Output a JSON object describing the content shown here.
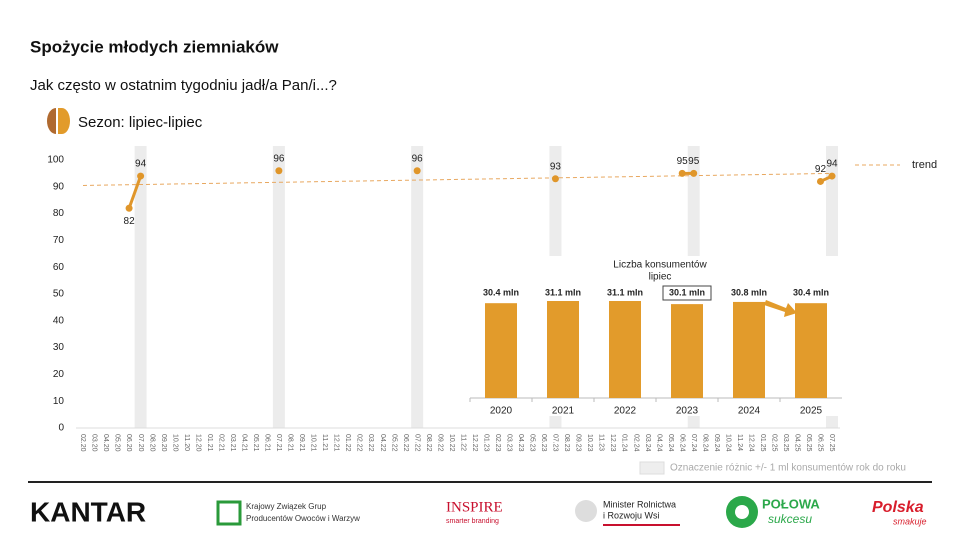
{
  "title": "Spożycie młodych ziemniaków",
  "subtitle": "Jak często w ostatnim tygodniu jadł/a Pan/i...?",
  "chart_data": [
    {
      "type": "line",
      "categories": [
        "02.20",
        "03.20",
        "04.20",
        "05.20",
        "06.20",
        "07.20",
        "08.20",
        "09.20",
        "10.20",
        "11.20",
        "12.20",
        "01.21",
        "02.21",
        "03.21",
        "04.21",
        "05.21",
        "06.21",
        "07.21",
        "08.21",
        "09.21",
        "10.21",
        "11.21",
        "12.21",
        "01.22",
        "02.22",
        "03.22",
        "04.22",
        "05.22",
        "06.22",
        "07.22",
        "08.22",
        "09.22",
        "10.22",
        "11.22",
        "12.22",
        "01.23",
        "02.23",
        "03.23",
        "04.23",
        "05.23",
        "06.23",
        "07.23",
        "08.23",
        "09.23",
        "10.23",
        "11.23",
        "12.23",
        "01.24",
        "02.24",
        "03.24",
        "04.24",
        "05.24",
        "06.24",
        "07.24",
        "08.24",
        "09.24",
        "10.24",
        "11.24",
        "12.24",
        "01.25",
        "02.25",
        "03.25",
        "04.25",
        "05.25",
        "06.25",
        "07.25"
      ],
      "series": [
        {
          "name": "Sezon: lipiec-lipiec",
          "color": "#e0962a",
          "values": [
            null,
            null,
            null,
            null,
            82,
            94,
            null,
            null,
            null,
            null,
            null,
            null,
            null,
            null,
            null,
            null,
            null,
            96,
            null,
            null,
            null,
            null,
            null,
            null,
            null,
            null,
            null,
            null,
            null,
            96,
            null,
            null,
            null,
            null,
            null,
            null,
            null,
            null,
            null,
            null,
            null,
            93,
            null,
            null,
            null,
            null,
            null,
            null,
            null,
            null,
            null,
            null,
            95,
            95,
            null,
            null,
            null,
            null,
            null,
            null,
            null,
            null,
            null,
            null,
            92,
            94
          ]
        }
      ],
      "trend": {
        "name": "trend",
        "color": "#e8a860",
        "x": [
          "02.20",
          "07.25"
        ],
        "values": [
          90.5,
          95
        ]
      },
      "highlight": [
        "07.20",
        "07.21",
        "07.22",
        "07.23",
        "07.24",
        "07.25"
      ],
      "highlight_label": "Oznaczenie różnic +/- 1 ml konsumentów rok do roku",
      "ylim": [
        0,
        100
      ],
      "yticks": [
        0,
        10,
        20,
        30,
        40,
        50,
        60,
        70,
        80,
        90,
        100
      ]
    },
    {
      "type": "bar",
      "title": "Liczba konsumentów",
      "subtitle": "lipiec",
      "categories": [
        "2020",
        "2021",
        "2022",
        "2023",
        "2024",
        "2025"
      ],
      "values": [
        30.4,
        31.1,
        31.1,
        30.1,
        30.8,
        30.4
      ],
      "value_labels": [
        "30.4 mln",
        "31.1 mln",
        "31.1 mln",
        "30.1 mln",
        "30.8 mln",
        "30.4 mln"
      ],
      "boxed": [
        false,
        false,
        false,
        true,
        false,
        false
      ],
      "color": "#e29b2b"
    }
  ],
  "logos": {
    "kantar": "KANTAR",
    "kzg1": "Krajowy Związek Grup",
    "kzg2": "Producentów Owoców i Warzyw",
    "inspire": "INSPIRE",
    "inspire2": "smarter branding",
    "min1": "Minister Rolnictwa",
    "min2": "i Rozwoju Wsi",
    "polowa": "POŁOWA",
    "sukcesu": "sukcesu",
    "polska": "Polska",
    "smakuje": "smakuje"
  }
}
